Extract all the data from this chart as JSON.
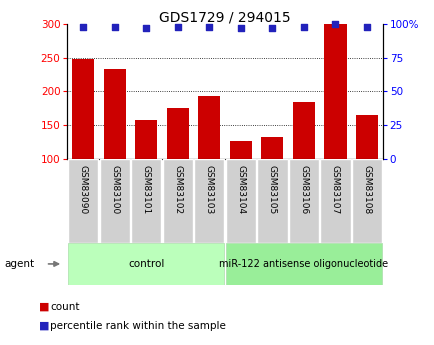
{
  "title": "GDS1729 / 294015",
  "samples": [
    "GSM83090",
    "GSM83100",
    "GSM83101",
    "GSM83102",
    "GSM83103",
    "GSM83104",
    "GSM83105",
    "GSM83106",
    "GSM83107",
    "GSM83108"
  ],
  "counts": [
    248,
    234,
    158,
    175,
    193,
    126,
    132,
    184,
    300,
    165
  ],
  "percentile_ranks": [
    98,
    98,
    97,
    98,
    98,
    97,
    97,
    98,
    100,
    98
  ],
  "ylim_left": [
    100,
    300
  ],
  "ylim_right": [
    0,
    100
  ],
  "yticks_left": [
    100,
    150,
    200,
    250,
    300
  ],
  "yticks_right": [
    0,
    25,
    50,
    75,
    100
  ],
  "ytick_labels_right": [
    "0",
    "25",
    "50",
    "75",
    "100%"
  ],
  "bar_color": "#cc0000",
  "dot_color": "#2222bb",
  "group1_label": "control",
  "group2_label": "miR-122 antisense oligonucleotide",
  "group1_indices": [
    0,
    1,
    2,
    3,
    4
  ],
  "group2_indices": [
    5,
    6,
    7,
    8,
    9
  ],
  "group1_color": "#bbffbb",
  "group2_color": "#99ee99",
  "agent_label": "agent",
  "legend_count_label": "count",
  "legend_percentile_label": "percentile rank within the sample",
  "title_fontsize": 10,
  "axis_fontsize": 7.5,
  "sample_fontsize": 6.5,
  "group_fontsize": 7.5,
  "legend_fontsize": 7.5
}
